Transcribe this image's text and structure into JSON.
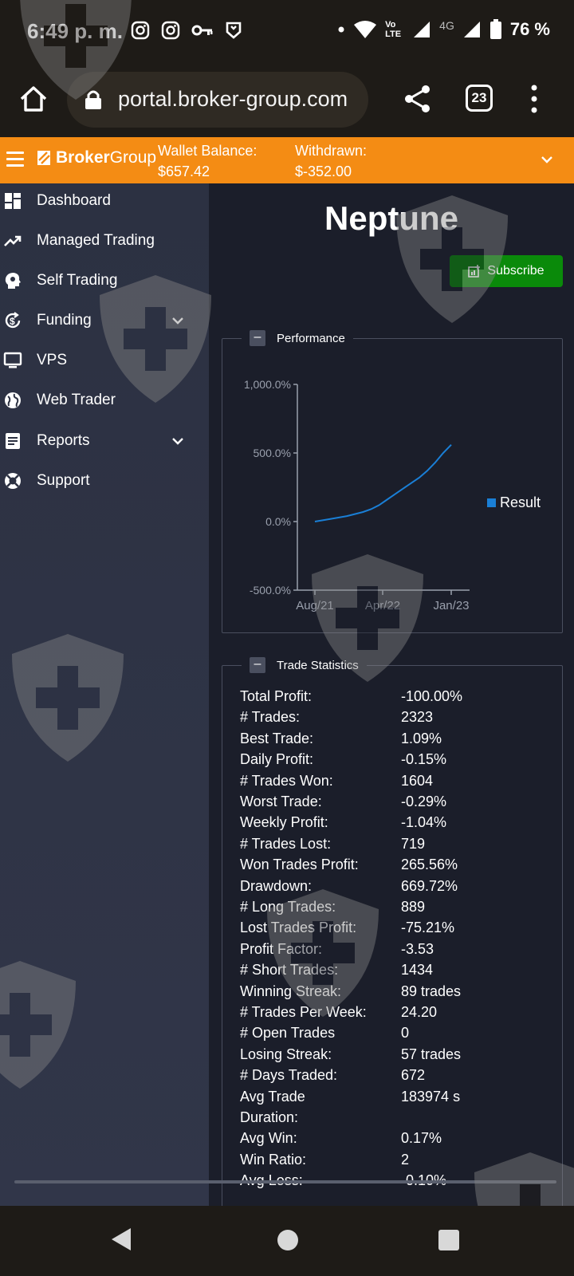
{
  "status_bar": {
    "time": "6:49 p. m.",
    "left_icons": [
      "instagram-icon",
      "instagram-icon",
      "key-icon",
      "shield-app-icon"
    ],
    "right_icons": [
      "dot-icon",
      "wifi-icon",
      "volte-icon",
      "signal-icon",
      "4g-signal-icon",
      "battery-icon"
    ],
    "volte_label": "Vo LTE",
    "network_label": "4G",
    "battery": "76 %"
  },
  "browser": {
    "url": "portal.broker-group.com",
    "tab_count": "23",
    "icons": [
      "home-icon",
      "lock-icon",
      "share-icon",
      "tabs-icon",
      "more-icon"
    ]
  },
  "header": {
    "brand_bold": "Broker",
    "brand_light": "Group",
    "wallet_label": "Wallet Balance:",
    "wallet_value": "$657.42",
    "withdrawn_label": "Withdrawn:",
    "withdrawn_value": "$-352.00",
    "accent_color": "#f48c14"
  },
  "sidebar": {
    "items": [
      {
        "label": "Dashboard",
        "icon": "dashboard-icon"
      },
      {
        "label": "Managed Trading",
        "icon": "trending-up-icon"
      },
      {
        "label": "Self Trading",
        "icon": "brain-head-icon"
      },
      {
        "label": "Funding",
        "icon": "dollar-refresh-icon",
        "expandable": true
      },
      {
        "label": "VPS",
        "icon": "monitor-icon"
      },
      {
        "label": "Web Trader",
        "icon": "globe-icon"
      },
      {
        "label": "Reports",
        "icon": "report-icon",
        "expandable": true
      },
      {
        "label": "Support",
        "icon": "lifebuoy-icon"
      }
    ]
  },
  "main": {
    "title": "Neptune",
    "subscribe_label": "Subscribe",
    "subscribe_color": "#0a8a0a",
    "performance_legend": "Performance",
    "stats_legend": "Trade Statistics",
    "collapse_symbol": "–"
  },
  "chart_data": {
    "type": "line",
    "y_ticks": [
      "1,000.0%",
      "500.0%",
      "0.0%",
      "-500.0%"
    ],
    "x_ticks": [
      "Aug/21",
      "Apr/22",
      "Jan/23"
    ],
    "ylim": [
      -500,
      1000
    ],
    "legend_position": "right",
    "series": [
      {
        "name": "Result",
        "color": "#1a7fd6",
        "points": [
          [
            "2021-08",
            0
          ],
          [
            "2021-10",
            20
          ],
          [
            "2021-12",
            40
          ],
          [
            "2022-02",
            70
          ],
          [
            "2022-03",
            90
          ],
          [
            "2022-04",
            120
          ],
          [
            "2022-05",
            160
          ],
          [
            "2022-06",
            200
          ],
          [
            "2022-07",
            240
          ],
          [
            "2022-08",
            280
          ],
          [
            "2022-09",
            320
          ],
          [
            "2022-10",
            370
          ],
          [
            "2022-11",
            430
          ],
          [
            "2022-12",
            500
          ],
          [
            "2023-01",
            560
          ]
        ]
      }
    ]
  },
  "stats": [
    {
      "label": "Total Profit:",
      "value": "-100.00%"
    },
    {
      "label": "# Trades:",
      "value": "2323"
    },
    {
      "label": "Best Trade:",
      "value": "1.09%"
    },
    {
      "label": "Daily Profit:",
      "value": "-0.15%"
    },
    {
      "label": "# Trades Won:",
      "value": "1604"
    },
    {
      "label": "Worst Trade:",
      "value": "-0.29%"
    },
    {
      "label": "Weekly Profit:",
      "value": "-1.04%"
    },
    {
      "label": "# Trades Lost:",
      "value": "719"
    },
    {
      "label": "Won Trades Profit:",
      "value": "265.56%"
    },
    {
      "label": "Drawdown:",
      "value": "669.72%"
    },
    {
      "label": "# Long Trades:",
      "value": "889"
    },
    {
      "label": "Lost Trades Profit:",
      "value": "-75.21%"
    },
    {
      "label": "Profit Factor:",
      "value": "-3.53"
    },
    {
      "label": "# Short Trades:",
      "value": "1434"
    },
    {
      "label": "Winning Streak:",
      "value": "89 trades"
    },
    {
      "label": "# Trades Per Week:",
      "value": "24.20"
    },
    {
      "label": "# Open Trades",
      "value": "0"
    },
    {
      "label": "Losing Streak:",
      "value": "57 trades"
    },
    {
      "label": "# Days Traded:",
      "value": "672"
    },
    {
      "label": "Avg Trade",
      "label2": "Duration:",
      "value": "183974 s"
    },
    {
      "label": "Avg Win:",
      "value": "0.17%"
    },
    {
      "label": "Win Ratio:",
      "value": "2"
    },
    {
      "label": "Avg Loss:",
      "value": "-0.10%"
    }
  ],
  "system_nav": {
    "icons": [
      "back-icon",
      "home-circle-icon",
      "recents-icon"
    ]
  }
}
